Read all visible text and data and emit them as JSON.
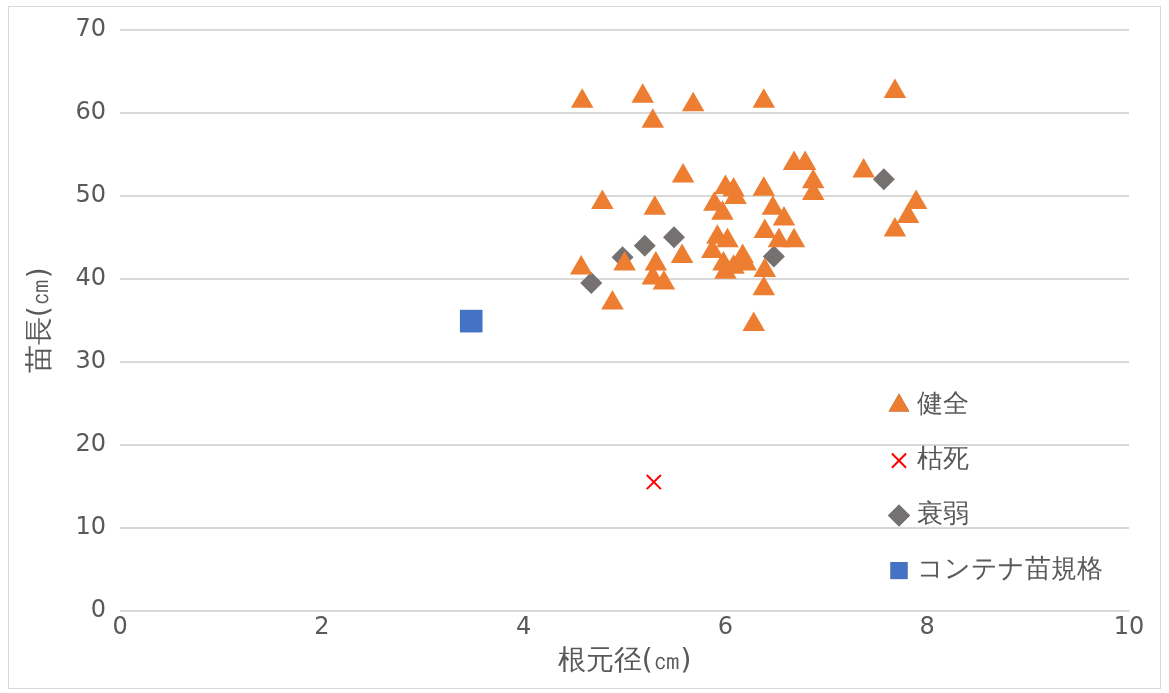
{
  "chart_data": {
    "type": "scatter",
    "xlabel": "根元径(㎝)",
    "ylabel": "苗長(㎝)",
    "xlim": [
      0,
      10
    ],
    "xticks": [
      0,
      2,
      4,
      6,
      8,
      10
    ],
    "ylim": [
      0,
      70
    ],
    "yticks": [
      0,
      10,
      20,
      30,
      40,
      50,
      60,
      70
    ],
    "grid": "y",
    "legend": "bottom right",
    "series": [
      {
        "name": "健全",
        "color": "#ed7d31",
        "marker": "triangle",
        "x": [
          4.58,
          5.18,
          5.28,
          5.68,
          6.38,
          7.68,
          5.58,
          5.3,
          4.78,
          4.57,
          4.88,
          5.87,
          5.57,
          5.31,
          5.39,
          5.28,
          5.89,
          6.0,
          6.08,
          6.1,
          5.97,
          5.92,
          6.02,
          5.98,
          6.0,
          6.08,
          6.17,
          6.2,
          6.38,
          6.47,
          6.58,
          6.39,
          6.53,
          6.65,
          6.68,
          6.39,
          6.38,
          6.28,
          6.68,
          6.79,
          6.87,
          6.87,
          7.37,
          7.89,
          7.81,
          7.68,
          5.0
        ],
        "values": [
          61.4,
          62,
          59,
          61,
          61.4,
          62.6,
          52.4,
          48.5,
          49.2,
          41.3,
          37.1,
          43.3,
          42.7,
          41.8,
          39.5,
          40.1,
          49,
          51,
          50.7,
          49.8,
          47.9,
          45,
          44.6,
          41.8,
          40.8,
          41.4,
          42.7,
          41.8,
          50.8,
          48.5,
          47.2,
          45.7,
          44.6,
          null,
          44.6,
          41,
          38.8,
          34.5,
          53.9,
          53.9,
          51.7,
          50.3,
          53,
          49.2,
          47.5,
          45.9,
          41.8
        ]
      },
      {
        "name": "枯死",
        "color": "#ff0000",
        "marker": "cross",
        "x": [
          5.29
        ],
        "values": [
          15.5
        ]
      },
      {
        "name": "衰弱",
        "color": "#767171",
        "marker": "diamond",
        "x": [
          4.67,
          4.98,
          5.2,
          5.49,
          6.48,
          7.57
        ],
        "values": [
          39.5,
          42.6,
          44,
          45,
          42.7,
          52
        ]
      },
      {
        "name": "コンテナ苗規格",
        "color": "#4472c4",
        "marker": "square",
        "x": [
          3.48
        ],
        "values": [
          34.9
        ]
      }
    ]
  }
}
